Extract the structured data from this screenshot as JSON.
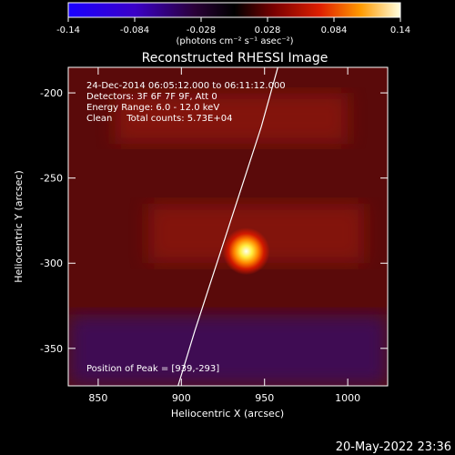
{
  "colorbar": {
    "ticks": [
      "-0.14",
      "-0.084",
      "-0.028",
      "0.028",
      "0.084",
      "0.14"
    ],
    "tick_values": [
      -0.14,
      -0.084,
      -0.028,
      0.028,
      0.084,
      0.14
    ],
    "range": [
      -0.14,
      0.14
    ],
    "units": "(photons cm⁻² s⁻¹ asec⁻²)"
  },
  "plot": {
    "title": "Reconstructed RHESSI Image",
    "info": [
      "24-Dec-2014 06:05:12.000 to 06:11:12.000",
      "Detectors: 3F 6F 7F 9F, Att 0",
      "Energy Range: 6.0 - 12.0 keV",
      "Clean     Total counts: 5.73E+04"
    ],
    "peak_label": "Position of Peak = [939,-293]"
  },
  "chart_data": {
    "type": "heatmap",
    "title": "Reconstructed RHESSI Image",
    "xlabel": "Heliocentric X (arcsec)",
    "ylabel": "Heliocentric Y (arcsec)",
    "xlim": [
      832,
      1024
    ],
    "ylim": [
      -372,
      -185
    ],
    "xticks": [
      850,
      900,
      950,
      1000
    ],
    "xtick_labels": [
      "850",
      "900",
      "950",
      "1000"
    ],
    "yticks": [
      -350,
      -300,
      -250,
      -200
    ],
    "ytick_labels": [
      "-350",
      "-300",
      "-250",
      "-200"
    ],
    "colormap": "hot-blue",
    "zlim": [
      -0.14,
      0.14
    ],
    "peak": {
      "x": 939,
      "y": -293,
      "value": 0.14
    },
    "limb_line": [
      [
        898,
        -372
      ],
      [
        908,
        -340
      ],
      [
        918,
        -310
      ],
      [
        928,
        -280
      ],
      [
        938,
        -250
      ],
      [
        948,
        -220
      ],
      [
        958,
        -185
      ]
    ],
    "background_bands": [
      {
        "x": [
          860,
          1000
        ],
        "y": [
          -230,
          -200
        ],
        "value": 0.02
      },
      {
        "x": [
          880,
          1010
        ],
        "y": [
          -300,
          -265
        ],
        "value": 0.02
      },
      {
        "x": [
          832,
          1024
        ],
        "y": [
          -372,
          -330
        ],
        "value": -0.03
      }
    ]
  },
  "footer": {
    "timestamp": "20-May-2022 23:36"
  }
}
